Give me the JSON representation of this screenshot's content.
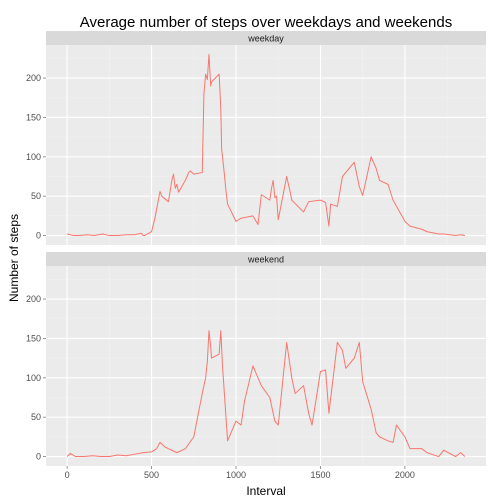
{
  "chart_data": {
    "type": "line",
    "title": "Average number of steps over weekdays and weekends",
    "xlabel": "Interval",
    "ylabel": "Number of steps",
    "xlim": [
      -125,
      2480
    ],
    "ylim": [
      -12,
      242
    ],
    "x_ticks": [
      0,
      500,
      1000,
      1500,
      2000
    ],
    "y_ticks": [
      0,
      50,
      100,
      150,
      200
    ],
    "grid": true,
    "legend": "none",
    "line_color": "#F8766D",
    "panel_bg": "#EBEBEB",
    "strip_bg": "#D9D9D9",
    "panels": [
      {
        "label": "weekday",
        "x": [
          0,
          40,
          70,
          120,
          160,
          210,
          250,
          300,
          350,
          400,
          440,
          450,
          460,
          500,
          520,
          540,
          550,
          560,
          600,
          620,
          630,
          640,
          650,
          660,
          700,
          710,
          720,
          730,
          750,
          800,
          810,
          820,
          830,
          840,
          850,
          855,
          900,
          910,
          915,
          920,
          930,
          940,
          950,
          1000,
          1030,
          1100,
          1130,
          1150,
          1200,
          1210,
          1220,
          1230,
          1240,
          1250,
          1300,
          1320,
          1330,
          1400,
          1430,
          1500,
          1530,
          1550,
          1560,
          1600,
          1630,
          1700,
          1730,
          1750,
          1800,
          1830,
          1850,
          1900,
          1930,
          2000,
          2030,
          2100,
          2130,
          2200,
          2230,
          2300,
          2330,
          2355
        ],
        "values": [
          2,
          0,
          0,
          1,
          0,
          2,
          0,
          0,
          1,
          1,
          3,
          0,
          0,
          5,
          22,
          45,
          56,
          50,
          43,
          70,
          78,
          60,
          65,
          55,
          70,
          75,
          80,
          82,
          78,
          80,
          180,
          205,
          198,
          230,
          190,
          195,
          205,
          160,
          110,
          100,
          80,
          58,
          40,
          18,
          22,
          25,
          14,
          52,
          45,
          60,
          70,
          48,
          50,
          20,
          75,
          56,
          45,
          30,
          43,
          45,
          42,
          12,
          40,
          37,
          75,
          93,
          62,
          51,
          100,
          85,
          70,
          65,
          45,
          18,
          12,
          8,
          5,
          2,
          2,
          0,
          1,
          0
        ]
      },
      {
        "label": "weekend",
        "x": [
          0,
          20,
          50,
          100,
          150,
          200,
          250,
          300,
          350,
          400,
          450,
          500,
          530,
          550,
          580,
          600,
          620,
          650,
          700,
          750,
          800,
          820,
          830,
          840,
          850,
          855,
          900,
          910,
          920,
          950,
          1000,
          1030,
          1050,
          1100,
          1150,
          1200,
          1230,
          1250,
          1300,
          1330,
          1350,
          1400,
          1430,
          1450,
          1500,
          1530,
          1550,
          1600,
          1630,
          1650,
          1700,
          1730,
          1750,
          1800,
          1830,
          1850,
          1900,
          1930,
          1950,
          2000,
          2030,
          2100,
          2130,
          2200,
          2230,
          2300,
          2330,
          2355
        ],
        "values": [
          0,
          4,
          0,
          0,
          1,
          0,
          0,
          2,
          1,
          3,
          5,
          6,
          10,
          18,
          12,
          10,
          8,
          5,
          10,
          25,
          80,
          100,
          120,
          160,
          140,
          125,
          130,
          160,
          115,
          20,
          45,
          40,
          70,
          115,
          90,
          75,
          45,
          40,
          145,
          100,
          80,
          90,
          55,
          40,
          108,
          110,
          55,
          145,
          135,
          112,
          125,
          145,
          95,
          60,
          30,
          25,
          20,
          18,
          40,
          25,
          10,
          10,
          5,
          0,
          8,
          0,
          5,
          0
        ]
      }
    ]
  }
}
